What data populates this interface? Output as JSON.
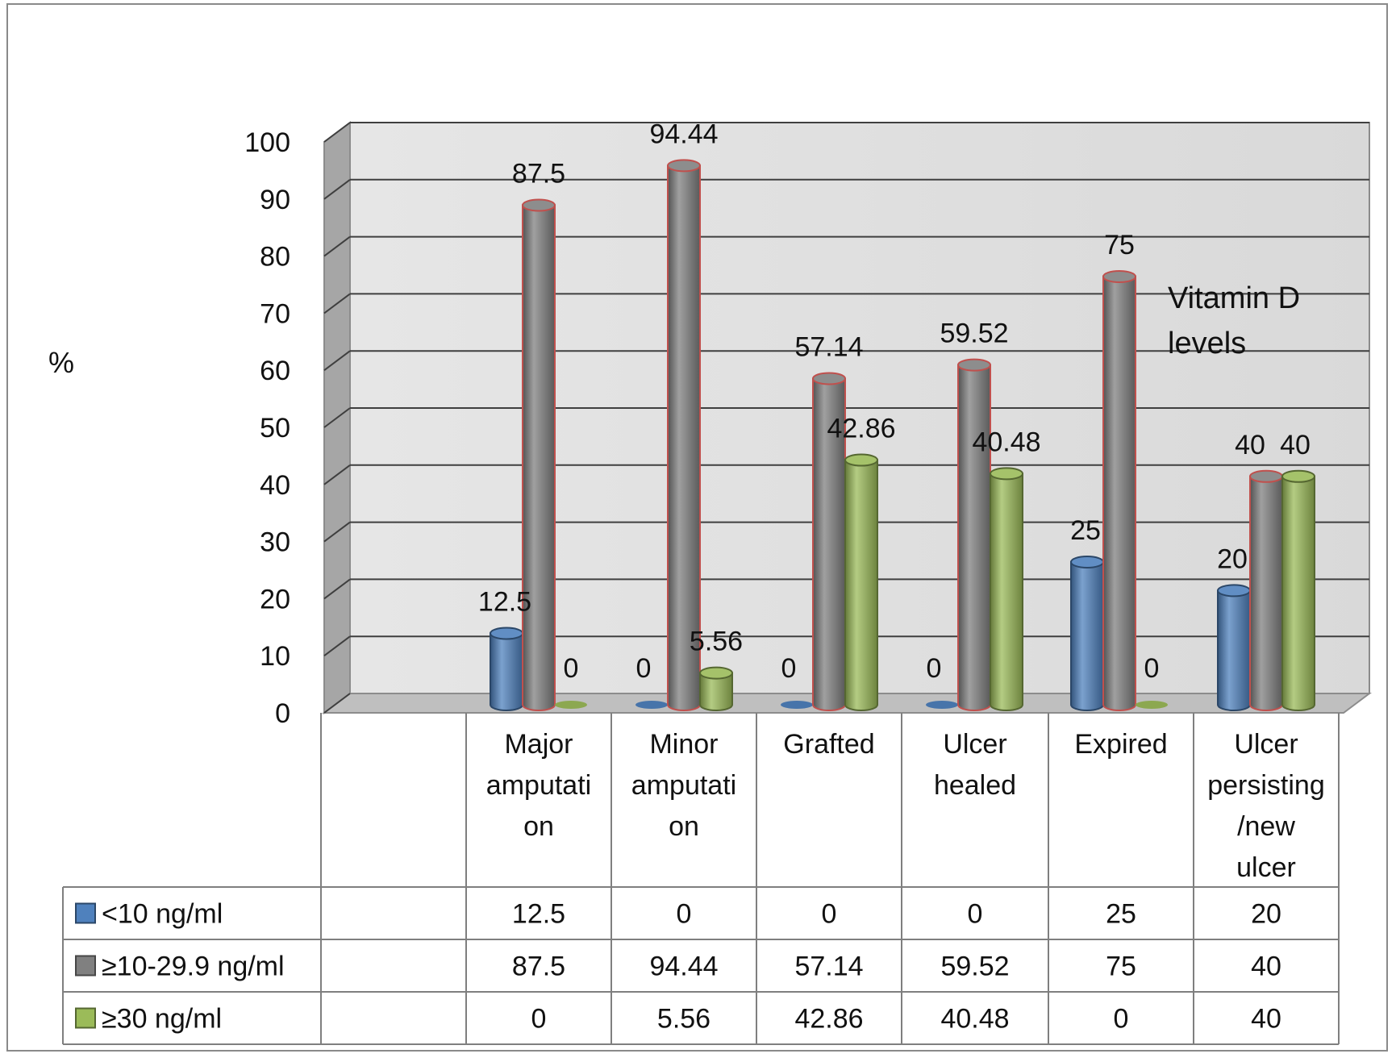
{
  "chart_data": {
    "type": "bar",
    "title": "",
    "xlabel": "",
    "ylabel": "%",
    "ylim": [
      0,
      100
    ],
    "yticks": [
      0,
      10,
      20,
      30,
      40,
      50,
      60,
      70,
      80,
      90,
      100
    ],
    "grid": true,
    "style": "3d-cylinder",
    "categories": [
      [
        "Major",
        "amputati",
        "on"
      ],
      [
        "Minor",
        "amputati",
        "on"
      ],
      [
        "Grafted"
      ],
      [
        "Ulcer",
        "healed"
      ],
      [
        "Expired"
      ],
      [
        "Ulcer",
        "persisting",
        "/new",
        "ulcer"
      ]
    ],
    "series": [
      {
        "name": "<10 ng/ml",
        "color": "#4f81bd",
        "values": [
          12.5,
          0,
          0,
          0,
          25,
          20
        ],
        "labels": [
          "12.5",
          "0",
          "0",
          "0",
          "25",
          "20"
        ]
      },
      {
        "name": "≥10-29.9 ng/ml",
        "color": "#808080",
        "values": [
          87.5,
          94.44,
          57.14,
          59.52,
          75,
          40
        ],
        "labels": [
          "87.5",
          "94.44",
          "57.14",
          "59.52",
          "75",
          "40"
        ]
      },
      {
        "name": "≥30 ng/ml",
        "color": "#9bbb59",
        "values": [
          0,
          5.56,
          42.86,
          40.48,
          0,
          40
        ],
        "labels": [
          "0",
          "5.56",
          "42.86",
          "40.48",
          "0",
          "40"
        ]
      }
    ],
    "annotation": [
      "Vitamin D",
      "levels"
    ],
    "legend": "data-table"
  }
}
